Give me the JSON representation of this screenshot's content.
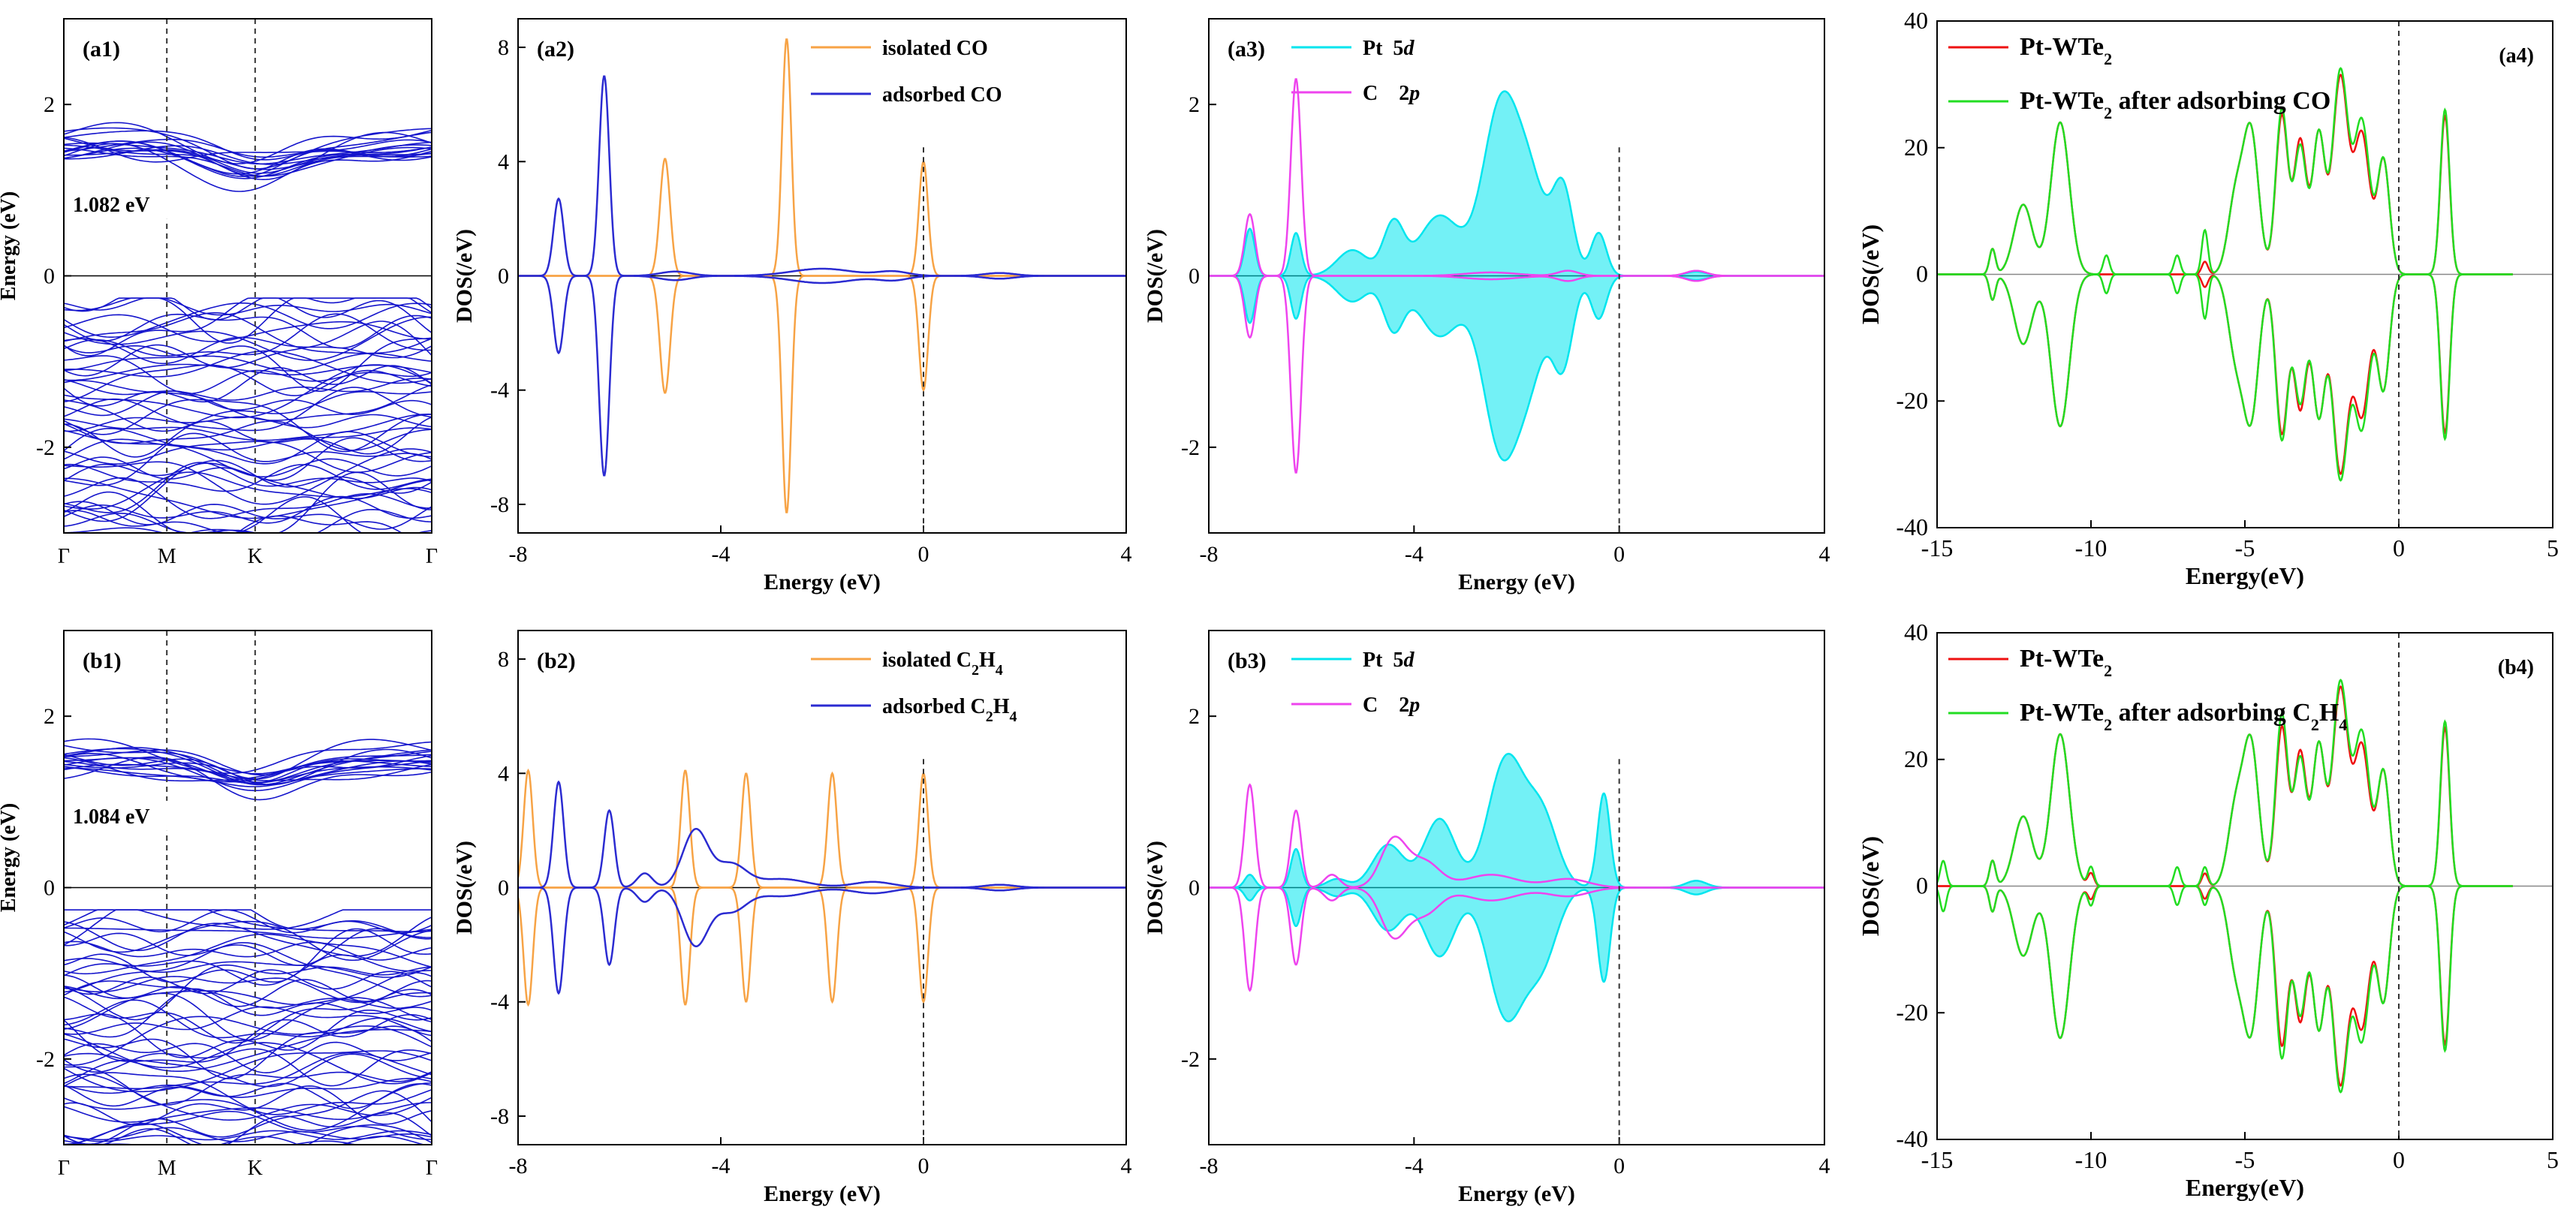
{
  "figure": {
    "panels": [
      {
        "id": "a1",
        "label": "(a1)",
        "gap_label": "1.082 eV"
      },
      {
        "id": "b1",
        "label": "(b1)",
        "gap_label": "1.084 eV"
      }
    ]
  },
  "chart_data": [
    {
      "id": "a1",
      "type": "line",
      "title": "(a1)",
      "xlabel": "",
      "ylabel": "Energy (eV)",
      "xticklabels": [
        "Γ",
        "M",
        "K",
        "Γ"
      ],
      "ylim": [
        -3,
        3
      ],
      "yticks": [
        -2,
        0,
        2
      ],
      "annotation": "1.082 eV",
      "band_gap": 1.082,
      "series": [
        {
          "name": "bands",
          "color": "#1515cc"
        }
      ]
    },
    {
      "id": "a2",
      "type": "line",
      "title": "(a2)",
      "xlabel": "Energy (eV)",
      "ylabel": "DOS(/eV)",
      "xlim": [
        -8,
        4
      ],
      "xticks": [
        -8,
        -4,
        0,
        4
      ],
      "ylim": [
        -9,
        9
      ],
      "yticks": [
        8,
        4,
        0,
        -4,
        -8
      ],
      "series": [
        {
          "name": "isolated CO",
          "name_html": "isolated CO",
          "color": "#f7a345",
          "peaks": [
            {
              "x": -5.1,
              "h": 4.1,
              "w": 0.1
            },
            {
              "x": -2.7,
              "h": 8.3,
              "w": 0.09
            },
            {
              "x": 0.0,
              "h": 4.0,
              "w": 0.09
            }
          ]
        },
        {
          "name": "adsorbed CO",
          "name_html": "adsorbed CO",
          "color": "#2b2bd1",
          "peaks": [
            {
              "x": -7.2,
              "h": 2.7,
              "w": 0.1
            },
            {
              "x": -6.3,
              "h": 7.0,
              "w": 0.1
            },
            {
              "x": -4.9,
              "h": 0.15,
              "w": 0.3
            },
            {
              "x": -2.0,
              "h": 0.25,
              "w": 0.6
            },
            {
              "x": -0.6,
              "h": 0.15,
              "w": 0.3
            },
            {
              "x": 1.5,
              "h": 0.1,
              "w": 0.3
            }
          ]
        }
      ]
    },
    {
      "id": "a3",
      "type": "area",
      "title": "(a3)",
      "xlabel": "Energy (eV)",
      "ylabel": "DOS(/eV)",
      "xlim": [
        -8,
        4
      ],
      "xticks": [
        -8,
        -4,
        0,
        4
      ],
      "ylim": [
        -3,
        3
      ],
      "yticks": [
        2,
        0,
        -2
      ],
      "series": [
        {
          "name": "Pt 5d",
          "name_html": "Pt&nbsp;&nbsp;5<tspan font-style='italic'>d</tspan>",
          "color": "#00e5ee",
          "filled": true,
          "peaks": [
            {
              "x": -7.2,
              "h": 0.55,
              "w": 0.1
            },
            {
              "x": -6.3,
              "h": 0.5,
              "w": 0.1
            },
            {
              "x": -5.2,
              "h": 0.3,
              "w": 0.3
            },
            {
              "x": -4.4,
              "h": 0.6,
              "w": 0.2
            },
            {
              "x": -3.5,
              "h": 0.7,
              "w": 0.4
            },
            {
              "x": -2.3,
              "h": 2.0,
              "w": 0.35
            },
            {
              "x": -1.7,
              "h": 0.9,
              "w": 0.3
            },
            {
              "x": -1.1,
              "h": 1.0,
              "w": 0.2
            },
            {
              "x": -0.4,
              "h": 0.5,
              "w": 0.15
            },
            {
              "x": 1.5,
              "h": 0.05,
              "w": 0.2
            }
          ]
        },
        {
          "name": "C 2p",
          "name_html": "C&nbsp;&nbsp;&nbsp;&nbsp;2<tspan font-style='italic'>p</tspan>",
          "color": "#ee44ee",
          "filled": false,
          "peaks": [
            {
              "x": -7.2,
              "h": 0.72,
              "w": 0.1
            },
            {
              "x": -6.3,
              "h": 2.3,
              "w": 0.1
            },
            {
              "x": -2.5,
              "h": 0.04,
              "w": 0.5
            },
            {
              "x": -1.0,
              "h": 0.06,
              "w": 0.2
            },
            {
              "x": 1.5,
              "h": 0.06,
              "w": 0.2
            }
          ]
        }
      ]
    },
    {
      "id": "a4",
      "type": "line",
      "title": "(a4)",
      "xlabel": "Energy(eV)",
      "ylabel": "DOS(/eV)",
      "xlim": [
        -15,
        5
      ],
      "xticks": [
        -15,
        -10,
        -5,
        0,
        5
      ],
      "ylim": [
        -40,
        40
      ],
      "yticks": [
        40,
        20,
        0,
        -20,
        -40
      ],
      "series": [
        {
          "name": "Pt-WTe2",
          "name_html": "Pt-WTe<tspan baseline-shift='sub' font-size='22'>2</tspan>",
          "color": "#ee1111",
          "peaks": [
            {
              "x": -13.2,
              "h": 4,
              "w": 0.1
            },
            {
              "x": -12.2,
              "h": 11,
              "w": 0.3
            },
            {
              "x": -11.0,
              "h": 24,
              "w": 0.3
            },
            {
              "x": -6.3,
              "h": 2,
              "w": 0.1
            },
            {
              "x": -5.3,
              "h": 12,
              "w": 0.25
            },
            {
              "x": -4.8,
              "h": 22,
              "w": 0.25
            },
            {
              "x": -3.8,
              "h": 25,
              "w": 0.2
            },
            {
              "x": -3.2,
              "h": 21,
              "w": 0.2
            },
            {
              "x": -2.6,
              "h": 22,
              "w": 0.2
            },
            {
              "x": -1.9,
              "h": 31,
              "w": 0.25
            },
            {
              "x": -1.2,
              "h": 22,
              "w": 0.25
            },
            {
              "x": -0.5,
              "h": 18,
              "w": 0.2
            },
            {
              "x": 1.5,
              "h": 25,
              "w": 0.15
            }
          ]
        },
        {
          "name": "Pt-WTe2 after adsorbing CO",
          "name_html": "Pt-WTe<tspan baseline-shift='sub' font-size='22'>2</tspan> after adsorbing CO",
          "color": "#22dd22",
          "peaks": [
            {
              "x": -13.2,
              "h": 4,
              "w": 0.1
            },
            {
              "x": -12.2,
              "h": 11,
              "w": 0.3
            },
            {
              "x": -11.0,
              "h": 24,
              "w": 0.3
            },
            {
              "x": -9.5,
              "h": 3,
              "w": 0.1
            },
            {
              "x": -7.2,
              "h": 3,
              "w": 0.1
            },
            {
              "x": -6.3,
              "h": 7,
              "w": 0.1
            },
            {
              "x": -5.3,
              "h": 12,
              "w": 0.25
            },
            {
              "x": -4.8,
              "h": 22,
              "w": 0.25
            },
            {
              "x": -3.8,
              "h": 26,
              "w": 0.2
            },
            {
              "x": -3.2,
              "h": 20,
              "w": 0.2
            },
            {
              "x": -2.6,
              "h": 22,
              "w": 0.2
            },
            {
              "x": -1.9,
              "h": 32,
              "w": 0.25
            },
            {
              "x": -1.2,
              "h": 24,
              "w": 0.25
            },
            {
              "x": -0.5,
              "h": 18,
              "w": 0.2
            },
            {
              "x": 1.5,
              "h": 26,
              "w": 0.15
            }
          ]
        }
      ]
    },
    {
      "id": "b1",
      "type": "line",
      "title": "(b1)",
      "xlabel": "",
      "ylabel": "Energy (eV)",
      "xticklabels": [
        "Γ",
        "M",
        "K",
        "Γ"
      ],
      "ylim": [
        -3,
        3
      ],
      "yticks": [
        -2,
        0,
        2
      ],
      "annotation": "1.084 eV",
      "band_gap": 1.084,
      "series": [
        {
          "name": "bands",
          "color": "#1515cc"
        }
      ]
    },
    {
      "id": "b2",
      "type": "line",
      "title": "(b2)",
      "xlabel": "Energy (eV)",
      "ylabel": "DOS(/eV)",
      "xlim": [
        -8,
        4
      ],
      "xticks": [
        -8,
        -4,
        0,
        4
      ],
      "ylim": [
        -9,
        9
      ],
      "yticks": [
        8,
        4,
        0,
        -4,
        -8
      ],
      "series": [
        {
          "name": "isolated C2H4",
          "name_html": "isolated C<tspan baseline-shift='sub' font-size='20'>2</tspan>H<tspan baseline-shift='sub' font-size='20'>4</tspan>",
          "color": "#f7a345",
          "peaks": [
            {
              "x": -7.8,
              "h": 4.1,
              "w": 0.09
            },
            {
              "x": -6.8,
              "h": 0.0,
              "w": 0.09
            },
            {
              "x": -4.7,
              "h": 4.1,
              "w": 0.09
            },
            {
              "x": -3.5,
              "h": 4.0,
              "w": 0.09
            },
            {
              "x": -1.8,
              "h": 4.0,
              "w": 0.09
            },
            {
              "x": 0.0,
              "h": 4.0,
              "w": 0.09
            }
          ]
        },
        {
          "name": "adsorbed C2H4",
          "name_html": "adsorbed C<tspan baseline-shift='sub' font-size='20'>2</tspan>H<tspan baseline-shift='sub' font-size='20'>4</tspan>",
          "color": "#2b2bd1",
          "peaks": [
            {
              "x": -7.2,
              "h": 3.7,
              "w": 0.1
            },
            {
              "x": -6.2,
              "h": 2.7,
              "w": 0.1
            },
            {
              "x": -5.5,
              "h": 0.5,
              "w": 0.15
            },
            {
              "x": -4.5,
              "h": 2.0,
              "w": 0.25
            },
            {
              "x": -3.8,
              "h": 0.8,
              "w": 0.3
            },
            {
              "x": -2.8,
              "h": 0.3,
              "w": 0.5
            },
            {
              "x": -1.0,
              "h": 0.2,
              "w": 0.4
            },
            {
              "x": 1.5,
              "h": 0.1,
              "w": 0.3
            }
          ]
        }
      ]
    },
    {
      "id": "b3",
      "type": "area",
      "title": "(b3)",
      "xlabel": "Energy (eV)",
      "ylabel": "DOS(/eV)",
      "xlim": [
        -8,
        4
      ],
      "xticks": [
        -8,
        -4,
        0,
        4
      ],
      "ylim": [
        -3,
        3
      ],
      "yticks": [
        2,
        0,
        -2
      ],
      "series": [
        {
          "name": "Pt 5d",
          "name_html": "Pt&nbsp;&nbsp;5<tspan font-style='italic'>d</tspan>",
          "color": "#00e5ee",
          "filled": true,
          "peaks": [
            {
              "x": -7.2,
              "h": 0.15,
              "w": 0.1
            },
            {
              "x": -6.3,
              "h": 0.45,
              "w": 0.1
            },
            {
              "x": -5.5,
              "h": 0.1,
              "w": 0.2
            },
            {
              "x": -4.5,
              "h": 0.5,
              "w": 0.3
            },
            {
              "x": -3.5,
              "h": 0.8,
              "w": 0.3
            },
            {
              "x": -2.2,
              "h": 1.5,
              "w": 0.35
            },
            {
              "x": -1.5,
              "h": 0.8,
              "w": 0.3
            },
            {
              "x": -0.3,
              "h": 1.1,
              "w": 0.12
            },
            {
              "x": 1.5,
              "h": 0.08,
              "w": 0.2
            }
          ]
        },
        {
          "name": "C 2p",
          "name_html": "C&nbsp;&nbsp;&nbsp;&nbsp;2<tspan font-style='italic'>p</tspan>",
          "color": "#ee44ee",
          "filled": false,
          "peaks": [
            {
              "x": -7.2,
              "h": 1.2,
              "w": 0.1
            },
            {
              "x": -6.3,
              "h": 0.9,
              "w": 0.1
            },
            {
              "x": -5.6,
              "h": 0.15,
              "w": 0.15
            },
            {
              "x": -4.4,
              "h": 0.55,
              "w": 0.25
            },
            {
              "x": -3.8,
              "h": 0.3,
              "w": 0.3
            },
            {
              "x": -2.5,
              "h": 0.15,
              "w": 0.5
            },
            {
              "x": -1.0,
              "h": 0.1,
              "w": 0.4
            }
          ]
        }
      ]
    },
    {
      "id": "b4",
      "type": "line",
      "title": "(b4)",
      "xlabel": "Energy(eV)",
      "ylabel": "DOS(/eV)",
      "xlim": [
        -15,
        5
      ],
      "xticks": [
        -15,
        -10,
        -5,
        0,
        5
      ],
      "ylim": [
        -40,
        40
      ],
      "yticks": [
        40,
        20,
        0,
        -20,
        -40
      ],
      "series": [
        {
          "name": "Pt-WTe2",
          "name_html": "Pt-WTe<tspan baseline-shift='sub' font-size='22'>2</tspan>",
          "color": "#ee1111",
          "peaks": [
            {
              "x": -13.2,
              "h": 4,
              "w": 0.1
            },
            {
              "x": -12.2,
              "h": 11,
              "w": 0.3
            },
            {
              "x": -11.0,
              "h": 24,
              "w": 0.3
            },
            {
              "x": -10.0,
              "h": 2,
              "w": 0.1
            },
            {
              "x": -6.3,
              "h": 2,
              "w": 0.1
            },
            {
              "x": -5.3,
              "h": 12,
              "w": 0.25
            },
            {
              "x": -4.8,
              "h": 22,
              "w": 0.25
            },
            {
              "x": -3.8,
              "h": 25,
              "w": 0.2
            },
            {
              "x": -3.2,
              "h": 21,
              "w": 0.2
            },
            {
              "x": -2.6,
              "h": 22,
              "w": 0.2
            },
            {
              "x": -1.9,
              "h": 31,
              "w": 0.25
            },
            {
              "x": -1.2,
              "h": 22,
              "w": 0.25
            },
            {
              "x": -0.5,
              "h": 18,
              "w": 0.2
            },
            {
              "x": 1.5,
              "h": 25,
              "w": 0.15
            }
          ]
        },
        {
          "name": "Pt-WTe2 after adsorbing C2H4",
          "name_html": "Pt-WTe<tspan baseline-shift='sub' font-size='22'>2</tspan> after adsorbing C<tspan baseline-shift='sub' font-size='22'>2</tspan>H<tspan baseline-shift='sub' font-size='22'>4</tspan>",
          "color": "#22dd22",
          "peaks": [
            {
              "x": -14.8,
              "h": 4,
              "w": 0.1
            },
            {
              "x": -13.2,
              "h": 4,
              "w": 0.1
            },
            {
              "x": -12.2,
              "h": 11,
              "w": 0.3
            },
            {
              "x": -11.0,
              "h": 24,
              "w": 0.3
            },
            {
              "x": -10.0,
              "h": 3,
              "w": 0.1
            },
            {
              "x": -7.2,
              "h": 3,
              "w": 0.1
            },
            {
              "x": -6.3,
              "h": 3,
              "w": 0.1
            },
            {
              "x": -5.3,
              "h": 12,
              "w": 0.25
            },
            {
              "x": -4.8,
              "h": 22,
              "w": 0.25
            },
            {
              "x": -3.8,
              "h": 27,
              "w": 0.2
            },
            {
              "x": -3.2,
              "h": 20,
              "w": 0.2
            },
            {
              "x": -2.6,
              "h": 22,
              "w": 0.2
            },
            {
              "x": -1.9,
              "h": 32,
              "w": 0.25
            },
            {
              "x": -1.2,
              "h": 24,
              "w": 0.25
            },
            {
              "x": -0.5,
              "h": 18,
              "w": 0.2
            },
            {
              "x": 1.5,
              "h": 26,
              "w": 0.15
            }
          ]
        }
      ]
    }
  ]
}
